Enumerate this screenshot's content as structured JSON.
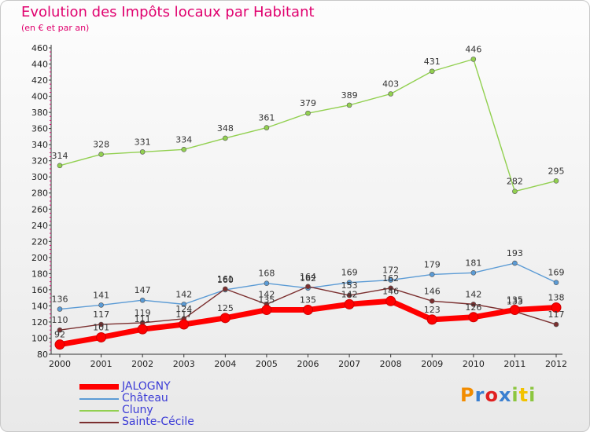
{
  "title": "Evolution des Impôts locaux par Habitant",
  "subtitle": "(en € et par an)",
  "logo": {
    "text": "Proxiti",
    "letter_colors": [
      "#f28c00",
      "#3a7fd0",
      "#e02020",
      "#3a7fd0",
      "#8cc63f",
      "#f2c200",
      "#8cc63f"
    ]
  },
  "chart_data": {
    "type": "line",
    "title": "Evolution des Impôts locaux par Habitant",
    "subtitle": "(en € et par an)",
    "x": [
      "2000",
      "2001",
      "2002",
      "2003",
      "2004",
      "2005",
      "2006",
      "2007",
      "2008",
      "2009",
      "2010",
      "2011",
      "2012"
    ],
    "ylim": [
      80,
      460
    ],
    "ytick_step": 20,
    "grid": false,
    "legend_position": "bottom-left",
    "series": [
      {
        "name": "JALOGNY",
        "color": "#ff0000",
        "values": [
          92,
          101,
          111,
          117,
          125,
          135,
          135,
          142,
          146,
          123,
          126,
          135,
          138
        ],
        "labels": [
          "92",
          "101",
          "111",
          "117",
          "125",
          "135",
          "135",
          "142",
          "146",
          "123",
          "126",
          "135",
          "138"
        ],
        "emphasis": true
      },
      {
        "name": "Château",
        "color": "#5b9bd5",
        "values": [
          136,
          141,
          147,
          142,
          160,
          168,
          162,
          169,
          172,
          179,
          181,
          193,
          169
        ],
        "labels": [
          "136",
          "141",
          "147",
          "142",
          "160",
          "168",
          "162",
          "169",
          "172",
          "179",
          "181",
          "193",
          "169"
        ]
      },
      {
        "name": "Cluny",
        "color": "#92d050",
        "values": [
          314,
          328,
          331,
          334,
          348,
          361,
          379,
          389,
          403,
          431,
          446,
          282,
          295
        ],
        "labels": [
          "314",
          "328",
          "331",
          "334",
          "348",
          "361",
          "379",
          "389",
          "403",
          "431",
          "446",
          "282",
          "295"
        ]
      },
      {
        "name": "Sainte-Cécile",
        "color": "#7b2f2f",
        "values": [
          110,
          117,
          119,
          124,
          161,
          142,
          164,
          153,
          162,
          146,
          142,
          133,
          117
        ],
        "labels": [
          "110",
          "117",
          "119",
          "124",
          "161",
          "142",
          "164",
          "153",
          "162",
          "146",
          "142",
          "133",
          "117"
        ]
      }
    ]
  }
}
